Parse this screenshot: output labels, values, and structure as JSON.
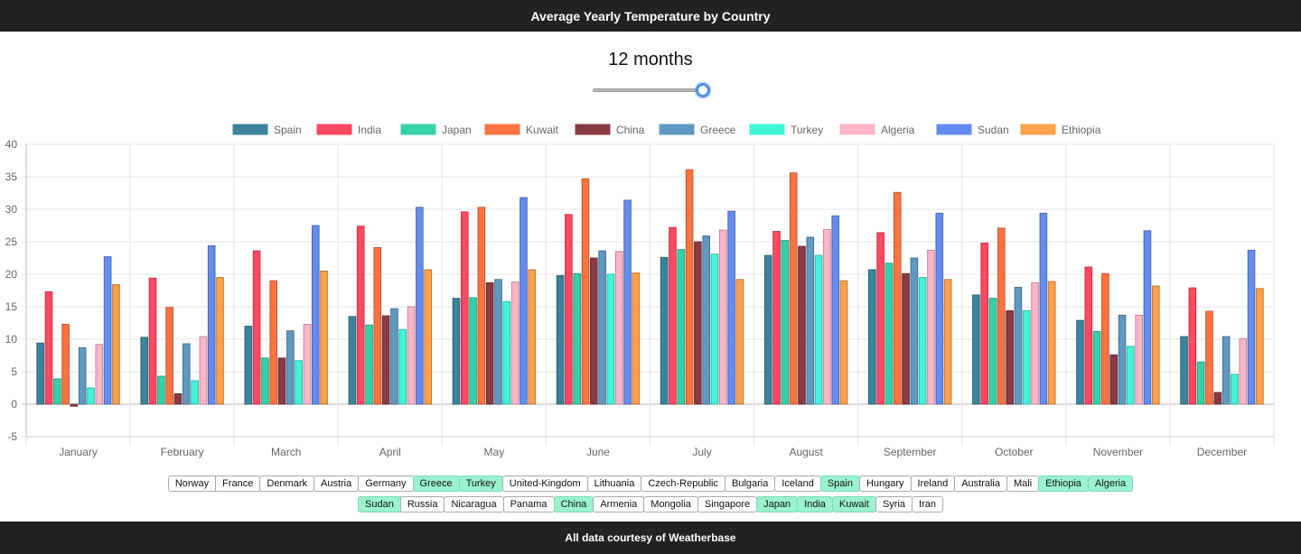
{
  "header": {
    "title": "Average Yearly Temperature by Country"
  },
  "slider": {
    "label": "12 months",
    "value_fraction": 1.0
  },
  "footer": {
    "text": "All data courtesy of Weatherbase"
  },
  "chart_data": {
    "type": "bar",
    "categories": [
      "January",
      "February",
      "March",
      "April",
      "May",
      "June",
      "July",
      "August",
      "September",
      "October",
      "November",
      "December"
    ],
    "ylim": [
      -5,
      40
    ],
    "yticks": [
      -5,
      0,
      5,
      10,
      15,
      20,
      25,
      30,
      35,
      40
    ],
    "grid": true,
    "legend_position": "top",
    "series": [
      {
        "name": "Spain",
        "color": "#3b849b",
        "values": [
          9.4,
          10.3,
          12.0,
          13.5,
          16.3,
          19.8,
          22.6,
          22.9,
          20.7,
          16.8,
          12.9,
          10.4
        ]
      },
      {
        "name": "India",
        "color": "#ff4862",
        "values": [
          17.3,
          19.4,
          23.6,
          27.4,
          29.6,
          29.2,
          27.2,
          26.6,
          26.4,
          24.8,
          21.1,
          17.9
        ]
      },
      {
        "name": "Japan",
        "color": "#36d2a8",
        "values": [
          3.9,
          4.3,
          7.1,
          12.2,
          16.4,
          20.1,
          23.8,
          25.2,
          21.7,
          16.3,
          11.2,
          6.5
        ]
      },
      {
        "name": "Kuwait",
        "color": "#ff7340",
        "values": [
          12.3,
          14.9,
          19.0,
          24.1,
          30.3,
          34.7,
          36.1,
          35.6,
          32.6,
          27.1,
          20.1,
          14.3
        ]
      },
      {
        "name": "China",
        "color": "#8a3a44",
        "values": [
          -0.3,
          1.6,
          7.1,
          13.6,
          18.7,
          22.5,
          25.0,
          24.3,
          20.1,
          14.4,
          7.6,
          1.8
        ]
      },
      {
        "name": "Greece",
        "color": "#5f98c0",
        "values": [
          8.7,
          9.3,
          11.3,
          14.7,
          19.2,
          23.6,
          25.9,
          25.7,
          22.5,
          18.0,
          13.7,
          10.4
        ]
      },
      {
        "name": "Turkey",
        "color": "#40f5d8",
        "values": [
          2.5,
          3.6,
          6.7,
          11.5,
          15.8,
          20.0,
          23.1,
          22.9,
          19.5,
          14.4,
          8.9,
          4.6
        ]
      },
      {
        "name": "Algeria",
        "color": "#ffb6c6",
        "values": [
          9.2,
          10.4,
          12.3,
          15.0,
          18.8,
          23.5,
          26.8,
          26.9,
          23.7,
          18.7,
          13.7,
          10.1
        ]
      },
      {
        "name": "Sudan",
        "color": "#648cf0",
        "values": [
          22.7,
          24.4,
          27.5,
          30.3,
          31.8,
          31.4,
          29.7,
          29.0,
          29.4,
          29.4,
          26.7,
          23.7
        ]
      },
      {
        "name": "Ethiopia",
        "color": "#ffa04a",
        "values": [
          18.4,
          19.5,
          20.5,
          20.7,
          20.7,
          20.2,
          19.2,
          19.0,
          19.2,
          18.9,
          18.2,
          17.8
        ]
      }
    ]
  },
  "country_buttons": {
    "row1": [
      {
        "label": "Norway",
        "selected": false
      },
      {
        "label": "France",
        "selected": false
      },
      {
        "label": "Denmark",
        "selected": false
      },
      {
        "label": "Austria",
        "selected": false
      },
      {
        "label": "Germany",
        "selected": false
      },
      {
        "label": "Greece",
        "selected": true
      },
      {
        "label": "Turkey",
        "selected": true
      },
      {
        "label": "United-Kingdom",
        "selected": false
      },
      {
        "label": "Lithuania",
        "selected": false
      },
      {
        "label": "Czech-Republic",
        "selected": false
      },
      {
        "label": "Bulgaria",
        "selected": false
      },
      {
        "label": "Iceland",
        "selected": false
      },
      {
        "label": "Spain",
        "selected": true
      },
      {
        "label": "Hungary",
        "selected": false
      },
      {
        "label": "Ireland",
        "selected": false
      },
      {
        "label": "Australia",
        "selected": false
      },
      {
        "label": "Mali",
        "selected": false
      },
      {
        "label": "Ethiopia",
        "selected": true
      },
      {
        "label": "Algeria",
        "selected": true
      }
    ],
    "row2": [
      {
        "label": "Sudan",
        "selected": true
      },
      {
        "label": "Russia",
        "selected": false
      },
      {
        "label": "Nicaragua",
        "selected": false
      },
      {
        "label": "Panama",
        "selected": false
      },
      {
        "label": "China",
        "selected": true
      },
      {
        "label": "Armenia",
        "selected": false
      },
      {
        "label": "Mongolia",
        "selected": false
      },
      {
        "label": "Singapore",
        "selected": false
      },
      {
        "label": "Japan",
        "selected": true
      },
      {
        "label": "India",
        "selected": true
      },
      {
        "label": "Kuwait",
        "selected": true
      },
      {
        "label": "Syria",
        "selected": false
      },
      {
        "label": "Iran",
        "selected": false
      }
    ]
  }
}
